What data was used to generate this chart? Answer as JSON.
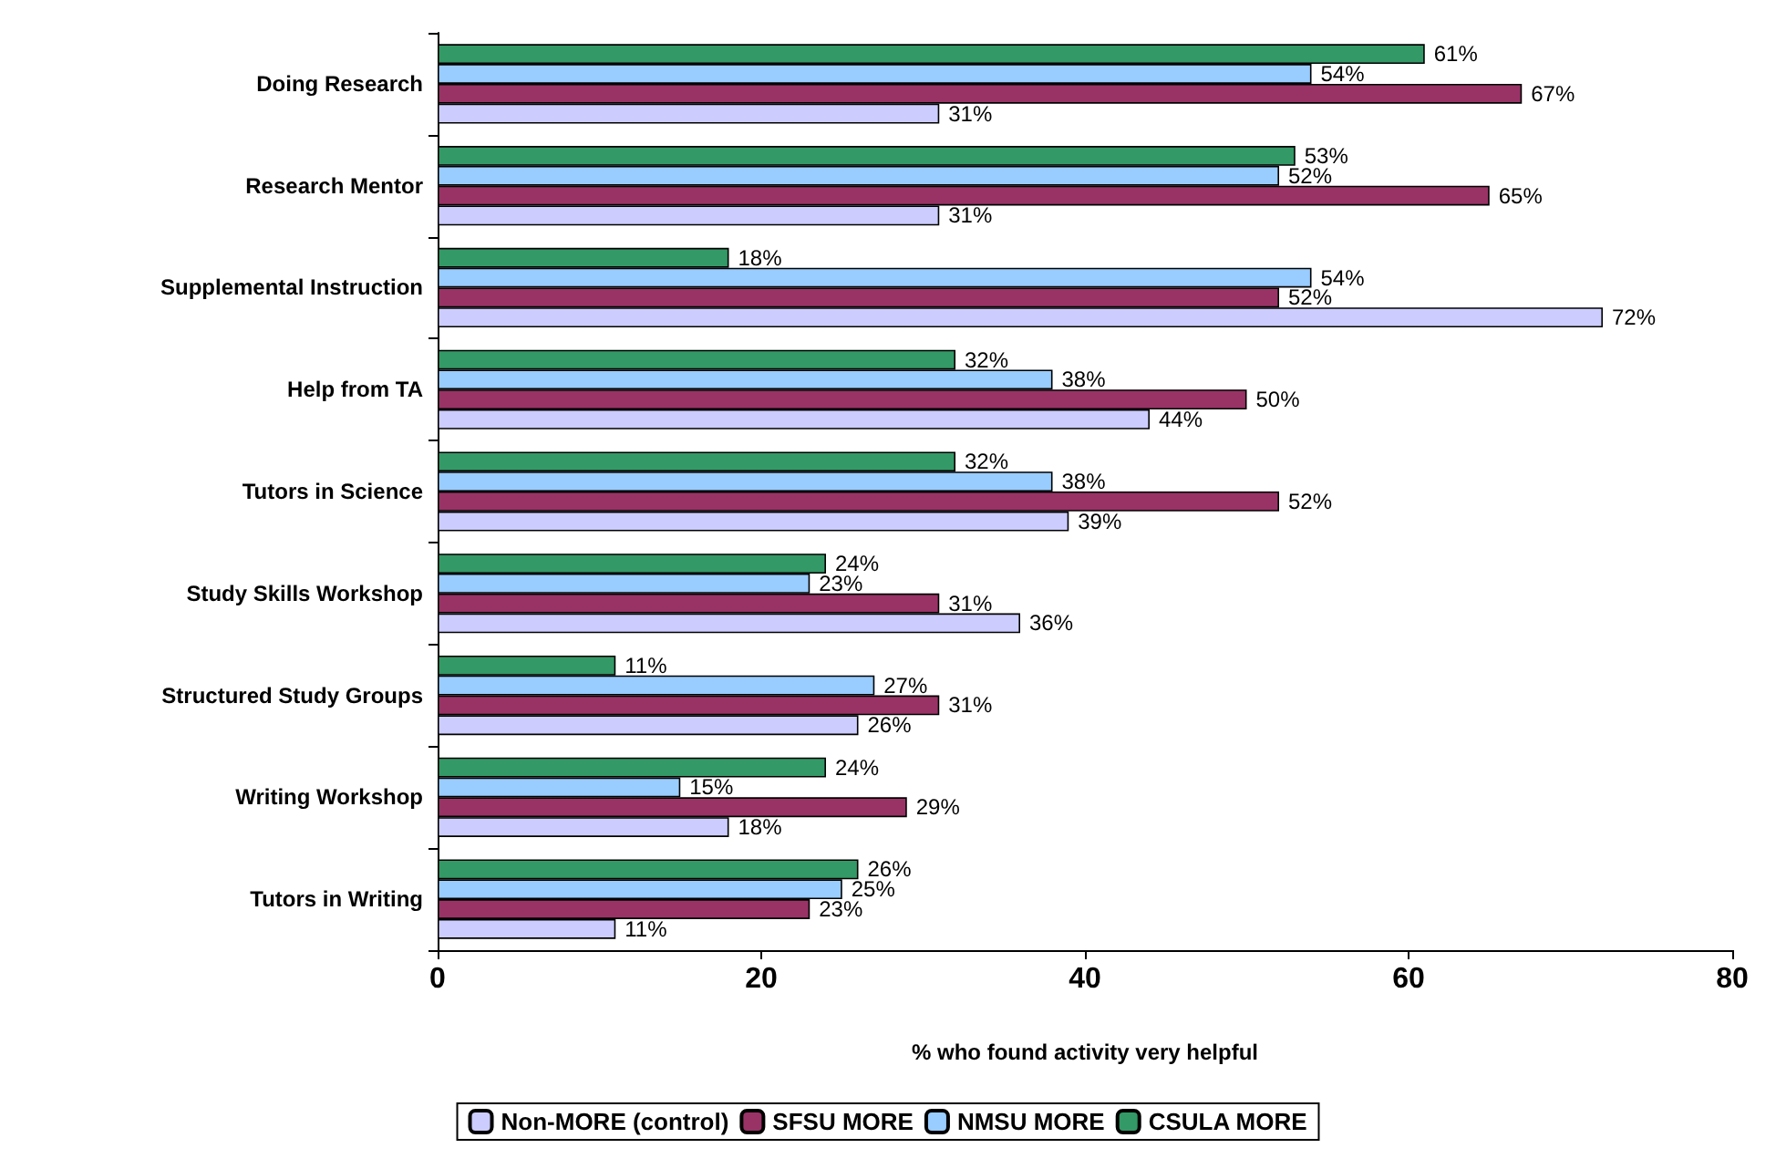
{
  "chart_data": {
    "type": "bar",
    "orientation": "horizontal",
    "xlabel": "% who found activity very helpful",
    "categories": [
      "Doing Research",
      "Research Mentor",
      "Supplemental Instruction",
      "Help from TA",
      "Tutors in Science",
      "Study Skills Workshop",
      "Structured Study Groups",
      "Writing Workshop",
      "Tutors in Writing"
    ],
    "series": [
      {
        "name": "Non-MORE (control)",
        "color": "#ccccff",
        "values": [
          31,
          31,
          72,
          44,
          39,
          36,
          26,
          18,
          11
        ],
        "value_labels": [
          "31%",
          "31%",
          "72%",
          "44%",
          "39%",
          "36%",
          "26%",
          "18%",
          "11%"
        ]
      },
      {
        "name": "SFSU MORE",
        "color": "#993366",
        "values": [
          67,
          65,
          52,
          50,
          52,
          31,
          31,
          29,
          23
        ],
        "value_labels": [
          "67%",
          "65%",
          "52%",
          "50%",
          "52%",
          "31%",
          "31%",
          "29%",
          "23%"
        ]
      },
      {
        "name": "NMSU MORE",
        "color": "#99ccff",
        "values": [
          54,
          52,
          54,
          38,
          38,
          23,
          27,
          15,
          25
        ],
        "value_labels": [
          "54%",
          "52%",
          "54%",
          "38%",
          "38%",
          "23%",
          "27%",
          "15%",
          "25%"
        ]
      },
      {
        "name": "CSULA MORE",
        "color": "#339966",
        "values": [
          61,
          53,
          18,
          32,
          32,
          24,
          11,
          24,
          26
        ],
        "value_labels": [
          "61%",
          "53%",
          "18%",
          "32%",
          "32%",
          "24%",
          "11%",
          "24%",
          "26%"
        ]
      }
    ],
    "xlim": [
      0,
      80
    ],
    "xticks": [
      0,
      20,
      40,
      60,
      80
    ],
    "grid": false,
    "legend": "bottom"
  }
}
